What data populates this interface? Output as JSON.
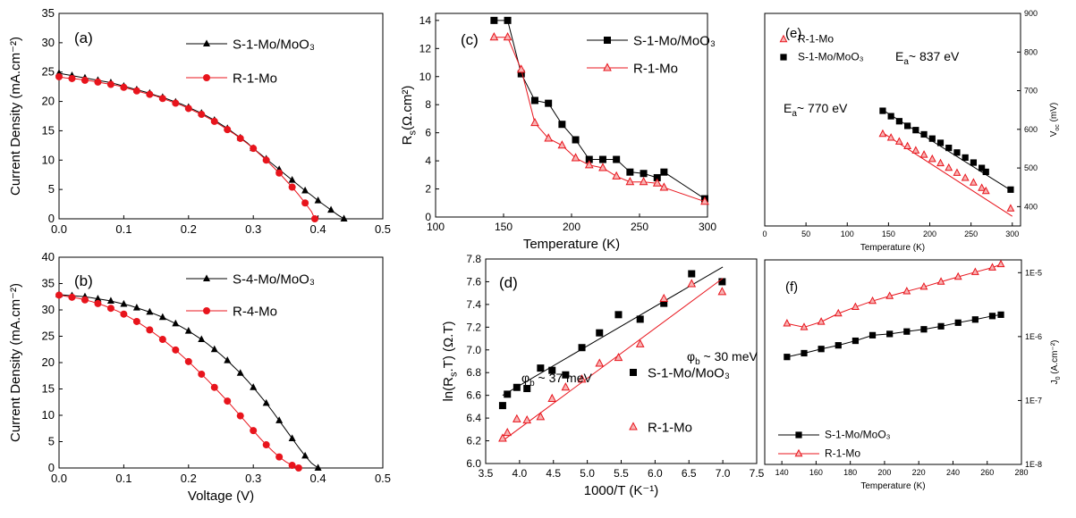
{
  "chart_data": [
    {
      "panel": "(a)",
      "type": "line",
      "xlabel": "",
      "ylabel": "Current Density (mA.cm⁻²)",
      "xlim": [
        0,
        0.5
      ],
      "ylim": [
        0,
        35
      ],
      "xticks": [
        "0.0",
        "0.1",
        "0.2",
        "0.3",
        "0.4",
        "0.5"
      ],
      "yticks": [
        "0",
        "5",
        "10",
        "15",
        "20",
        "25",
        "30",
        "35"
      ],
      "legend_position": "top-right",
      "series": [
        {
          "name": "S-1-Mo/MoO₃",
          "marker": "triangle",
          "color": "#000000",
          "x": [
            0,
            0.01,
            0.02,
            0.03,
            0.04,
            0.05,
            0.06,
            0.07,
            0.08,
            0.09,
            0.1,
            0.11,
            0.12,
            0.13,
            0.14,
            0.15,
            0.16,
            0.17,
            0.18,
            0.19,
            0.2,
            0.21,
            0.22,
            0.23,
            0.24,
            0.25,
            0.26,
            0.27,
            0.28,
            0.29,
            0.3,
            0.31,
            0.32,
            0.33,
            0.34,
            0.35,
            0.36,
            0.37,
            0.38,
            0.39,
            0.4,
            0.41,
            0.42,
            0.43,
            0.44
          ],
          "y": [
            24.8,
            24.6,
            24.4,
            24.2,
            24.0,
            23.8,
            23.6,
            23.4,
            23.2,
            22.9,
            22.6,
            22.3,
            22.0,
            21.7,
            21.4,
            21.0,
            20.7,
            20.3,
            19.9,
            19.5,
            19.0,
            18.5,
            18.0,
            17.4,
            16.8,
            16.1,
            15.4,
            14.6,
            13.8,
            13.0,
            12.0,
            11.1,
            10.2,
            9.3,
            8.4,
            7.5,
            6.6,
            5.7,
            4.8,
            4.0,
            3.1,
            2.3,
            1.5,
            0.7,
            0
          ]
        },
        {
          "name": "R-1-Mo",
          "marker": "circle",
          "color": "#e8141c",
          "x": [
            0,
            0.01,
            0.02,
            0.03,
            0.04,
            0.05,
            0.06,
            0.07,
            0.08,
            0.09,
            0.1,
            0.11,
            0.12,
            0.13,
            0.14,
            0.15,
            0.16,
            0.17,
            0.18,
            0.19,
            0.2,
            0.21,
            0.22,
            0.23,
            0.24,
            0.25,
            0.26,
            0.27,
            0.28,
            0.29,
            0.3,
            0.31,
            0.32,
            0.33,
            0.34,
            0.35,
            0.36,
            0.37,
            0.38,
            0.39,
            0.395
          ],
          "y": [
            24.2,
            24.0,
            23.9,
            23.8,
            23.6,
            23.5,
            23.3,
            23.1,
            22.9,
            22.7,
            22.4,
            22.1,
            21.8,
            21.5,
            21.2,
            20.9,
            20.5,
            20.1,
            19.7,
            19.3,
            18.8,
            18.3,
            17.8,
            17.2,
            16.6,
            15.9,
            15.2,
            14.5,
            13.7,
            12.9,
            12.0,
            11.0,
            10.0,
            8.9,
            7.8,
            6.6,
            5.4,
            4.1,
            2.7,
            1.2,
            0
          ]
        }
      ]
    },
    {
      "panel": "(b)",
      "type": "line",
      "xlabel": "Voltage (V)",
      "ylabel": "Current Density (mA.cm⁻²)",
      "xlim": [
        0,
        0.5
      ],
      "ylim": [
        0,
        40
      ],
      "xticks": [
        "0.0",
        "0.1",
        "0.2",
        "0.3",
        "0.4",
        "0.5"
      ],
      "yticks": [
        "0",
        "5",
        "10",
        "15",
        "20",
        "25",
        "30",
        "35",
        "40"
      ],
      "legend_position": "top-right",
      "series": [
        {
          "name": "S-4-Mo/MoO₃",
          "marker": "triangle",
          "color": "#000000",
          "x": [
            0,
            0.01,
            0.02,
            0.03,
            0.04,
            0.05,
            0.06,
            0.07,
            0.08,
            0.09,
            0.1,
            0.11,
            0.12,
            0.13,
            0.14,
            0.15,
            0.16,
            0.17,
            0.18,
            0.19,
            0.2,
            0.21,
            0.22,
            0.23,
            0.24,
            0.25,
            0.26,
            0.27,
            0.28,
            0.29,
            0.3,
            0.31,
            0.32,
            0.33,
            0.34,
            0.35,
            0.36,
            0.37,
            0.38,
            0.39,
            0.4
          ],
          "y": [
            32.9,
            32.8,
            32.7,
            32.6,
            32.5,
            32.3,
            32.1,
            31.9,
            31.7,
            31.4,
            31.1,
            30.8,
            30.4,
            30.0,
            29.6,
            29.1,
            28.6,
            28.0,
            27.4,
            26.7,
            26.0,
            25.2,
            24.4,
            23.5,
            22.5,
            21.5,
            20.4,
            19.2,
            18.0,
            16.7,
            15.3,
            13.8,
            12.3,
            10.7,
            9.0,
            7.3,
            5.6,
            3.9,
            2.3,
            0.9,
            0
          ]
        },
        {
          "name": "R-4-Mo",
          "marker": "circle",
          "color": "#e8141c",
          "x": [
            0,
            0.01,
            0.02,
            0.03,
            0.04,
            0.05,
            0.06,
            0.07,
            0.08,
            0.09,
            0.1,
            0.11,
            0.12,
            0.13,
            0.14,
            0.15,
            0.16,
            0.17,
            0.18,
            0.19,
            0.2,
            0.21,
            0.22,
            0.23,
            0.24,
            0.25,
            0.26,
            0.27,
            0.28,
            0.29,
            0.3,
            0.31,
            0.32,
            0.33,
            0.34,
            0.35,
            0.36,
            0.37
          ],
          "y": [
            32.8,
            32.6,
            32.4,
            32.2,
            31.9,
            31.6,
            31.2,
            30.8,
            30.3,
            29.8,
            29.2,
            28.5,
            27.8,
            27.0,
            26.2,
            25.3,
            24.4,
            23.4,
            22.4,
            21.3,
            20.2,
            19.0,
            17.8,
            16.6,
            15.3,
            14.0,
            12.7,
            11.3,
            9.9,
            8.5,
            7.1,
            5.7,
            4.4,
            3.2,
            2.1,
            1.2,
            0.5,
            0
          ]
        }
      ]
    },
    {
      "panel": "(c)",
      "type": "line",
      "xlabel": "Temperature (K)",
      "ylabel": "R",
      "ylabel_sub": "s",
      "ylabel_rest": "(Ω.cm²)",
      "xlim": [
        100,
        300
      ],
      "ylim": [
        0,
        14.5
      ],
      "xticks": [
        "100",
        "150",
        "200",
        "250",
        "300"
      ],
      "yticks": [
        "0",
        "2",
        "4",
        "6",
        "8",
        "10",
        "12",
        "14"
      ],
      "legend_position": "top-right",
      "series": [
        {
          "name": "S-1-Mo/MoO₃",
          "marker": "square",
          "color": "#000000",
          "x": [
            143,
            153,
            163,
            173,
            183,
            193,
            203,
            213,
            223,
            233,
            243,
            253,
            263,
            268,
            298
          ],
          "y": [
            14.0,
            14.0,
            10.2,
            8.3,
            8.1,
            6.6,
            5.5,
            4.1,
            4.1,
            4.1,
            3.2,
            3.1,
            2.8,
            3.2,
            1.3
          ]
        },
        {
          "name": "R-1-Mo",
          "marker": "triangle-open",
          "color": "#e8141c",
          "x": [
            143,
            153,
            163,
            173,
            183,
            193,
            203,
            213,
            223,
            233,
            243,
            253,
            263,
            268,
            298
          ],
          "y": [
            12.8,
            12.8,
            10.5,
            6.7,
            5.6,
            5.1,
            4.2,
            3.7,
            3.5,
            2.9,
            2.5,
            2.5,
            2.4,
            2.1,
            1.1
          ]
        }
      ]
    },
    {
      "panel": "(d)",
      "type": "scatter",
      "xlabel": "1000/T (K⁻¹)",
      "ylabel": "ln(R",
      "ylabel_sub": "s",
      "ylabel_rest": ".T) (Ω.T)",
      "xlim": [
        3.5,
        7.5
      ],
      "ylim": [
        6.0,
        7.8
      ],
      "xticks": [
        "3.5",
        "4.0",
        "4.5",
        "5.0",
        "5.5",
        "6.0",
        "6.5",
        "7.0",
        "7.5"
      ],
      "yticks": [
        "6.0",
        "6.2",
        "6.4",
        "6.6",
        "6.8",
        "7.0",
        "7.2",
        "7.4",
        "7.6",
        "7.8"
      ],
      "legend_position": "bottom-right",
      "annotations": [
        {
          "text": "φ",
          "sub": "b",
          "rest": " ~ 37 meV"
        },
        {
          "text": "φ",
          "sub": "b",
          "rest": " ~ 30 meV"
        }
      ],
      "series": [
        {
          "name": "S-1-Mo/MoO₃",
          "marker": "square",
          "color": "#000000",
          "x": [
            3.75,
            3.82,
            3.96,
            4.11,
            4.31,
            4.48,
            4.68,
            4.92,
            5.18,
            5.46,
            5.78,
            6.13,
            6.54,
            6.99
          ],
          "y": [
            6.51,
            6.61,
            6.67,
            6.66,
            6.84,
            6.82,
            6.78,
            7.02,
            7.15,
            7.31,
            7.27,
            7.41,
            7.67,
            7.6
          ],
          "fit": [
            [
              3.75,
              6.6
            ],
            [
              7.0,
              7.73
            ]
          ]
        },
        {
          "name": "R-1-Mo",
          "marker": "triangle-open",
          "color": "#e8141c",
          "x": [
            3.75,
            3.82,
            3.96,
            4.11,
            4.31,
            4.48,
            4.68,
            4.92,
            5.18,
            5.46,
            5.78,
            6.13,
            6.54,
            6.99
          ],
          "y": [
            6.22,
            6.27,
            6.39,
            6.38,
            6.41,
            6.57,
            6.67,
            6.74,
            6.88,
            6.93,
            7.05,
            7.45,
            7.58,
            7.51
          ],
          "fit": [
            [
              3.75,
              6.2
            ],
            [
              7.0,
              7.63
            ]
          ]
        }
      ]
    },
    {
      "panel": "(e)",
      "type": "scatter",
      "xlabel": "Temperature (K)",
      "ylabel": "V",
      "ylabel_sub": "oc",
      "ylabel_rest": " (mV)",
      "xlim": [
        0,
        310
      ],
      "ylim": [
        350,
        900
      ],
      "xticks": [
        "0",
        "50",
        "100",
        "150",
        "200",
        "250",
        "300"
      ],
      "yticks": [
        "400",
        "500",
        "600",
        "700",
        "800",
        "900"
      ],
      "legend_position": "top-left",
      "annotations": [
        {
          "text": "E",
          "sub": "a",
          "rest": "~ 837 eV",
          "color": "#000000"
        },
        {
          "text": "E",
          "sub": "a",
          "rest": "~ 770 eV",
          "color": "#e8141c"
        }
      ],
      "series": [
        {
          "name": "R-1-Mo",
          "marker": "triangle-open",
          "color": "#e8141c",
          "x": [
            143,
            153,
            163,
            173,
            183,
            193,
            203,
            213,
            223,
            233,
            243,
            253,
            263,
            268,
            298
          ],
          "y": [
            588,
            578,
            568,
            556,
            545,
            534,
            523,
            512,
            500,
            487,
            474,
            462,
            448,
            440,
            395
          ],
          "fit": [
            [
              143,
              591
            ],
            [
              300,
              375
            ]
          ]
        },
        {
          "name": "S-1-Mo/MoO₃",
          "marker": "square",
          "color": "#000000",
          "x": [
            143,
            153,
            163,
            173,
            183,
            193,
            203,
            213,
            223,
            233,
            243,
            253,
            263,
            268,
            298
          ],
          "y": [
            648,
            634,
            621,
            609,
            598,
            587,
            576,
            565,
            552,
            540,
            527,
            514,
            500,
            490,
            444
          ],
          "fit": [
            [
              143,
              650
            ],
            [
              300,
              440
            ]
          ]
        }
      ]
    },
    {
      "panel": "(f)",
      "type": "line",
      "xlabel": "Temperature (K)",
      "ylabel": "J",
      "ylabel_sub": "0",
      "ylabel_rest": " (A.cm⁻²)",
      "xlim": [
        130,
        280
      ],
      "ylim_log10": [
        -8,
        -4.8
      ],
      "yscale": "log",
      "xticks": [
        "140",
        "160",
        "180",
        "200",
        "220",
        "240",
        "260",
        "280"
      ],
      "yticks": [
        "1E-8",
        "1E-7",
        "1E-6",
        "1E-5"
      ],
      "legend_position": "bottom-left",
      "series": [
        {
          "name": "S-1-Mo/MoO₃",
          "marker": "square",
          "color": "#000000",
          "x": [
            143,
            153,
            163,
            173,
            183,
            193,
            203,
            213,
            223,
            233,
            243,
            253,
            263,
            268
          ],
          "y": [
            4.8e-07,
            5.5e-07,
            6.4e-07,
            7.3e-07,
            8.6e-07,
            1.05e-06,
            1.1e-06,
            1.2e-06,
            1.3e-06,
            1.45e-06,
            1.65e-06,
            1.85e-06,
            2.1e-06,
            2.2e-06
          ]
        },
        {
          "name": "R-1-Mo",
          "marker": "triangle-open",
          "color": "#e8141c",
          "x": [
            143,
            153,
            163,
            173,
            183,
            193,
            203,
            213,
            223,
            233,
            243,
            253,
            263,
            268
          ],
          "y": [
            1.6e-06,
            1.4e-06,
            1.7e-06,
            2.3e-06,
            2.9e-06,
            3.6e-06,
            4.3e-06,
            5.1e-06,
            6e-06,
            7.2e-06,
            8.6e-06,
            1.02e-05,
            1.2e-05,
            1.35e-05
          ]
        }
      ]
    }
  ]
}
